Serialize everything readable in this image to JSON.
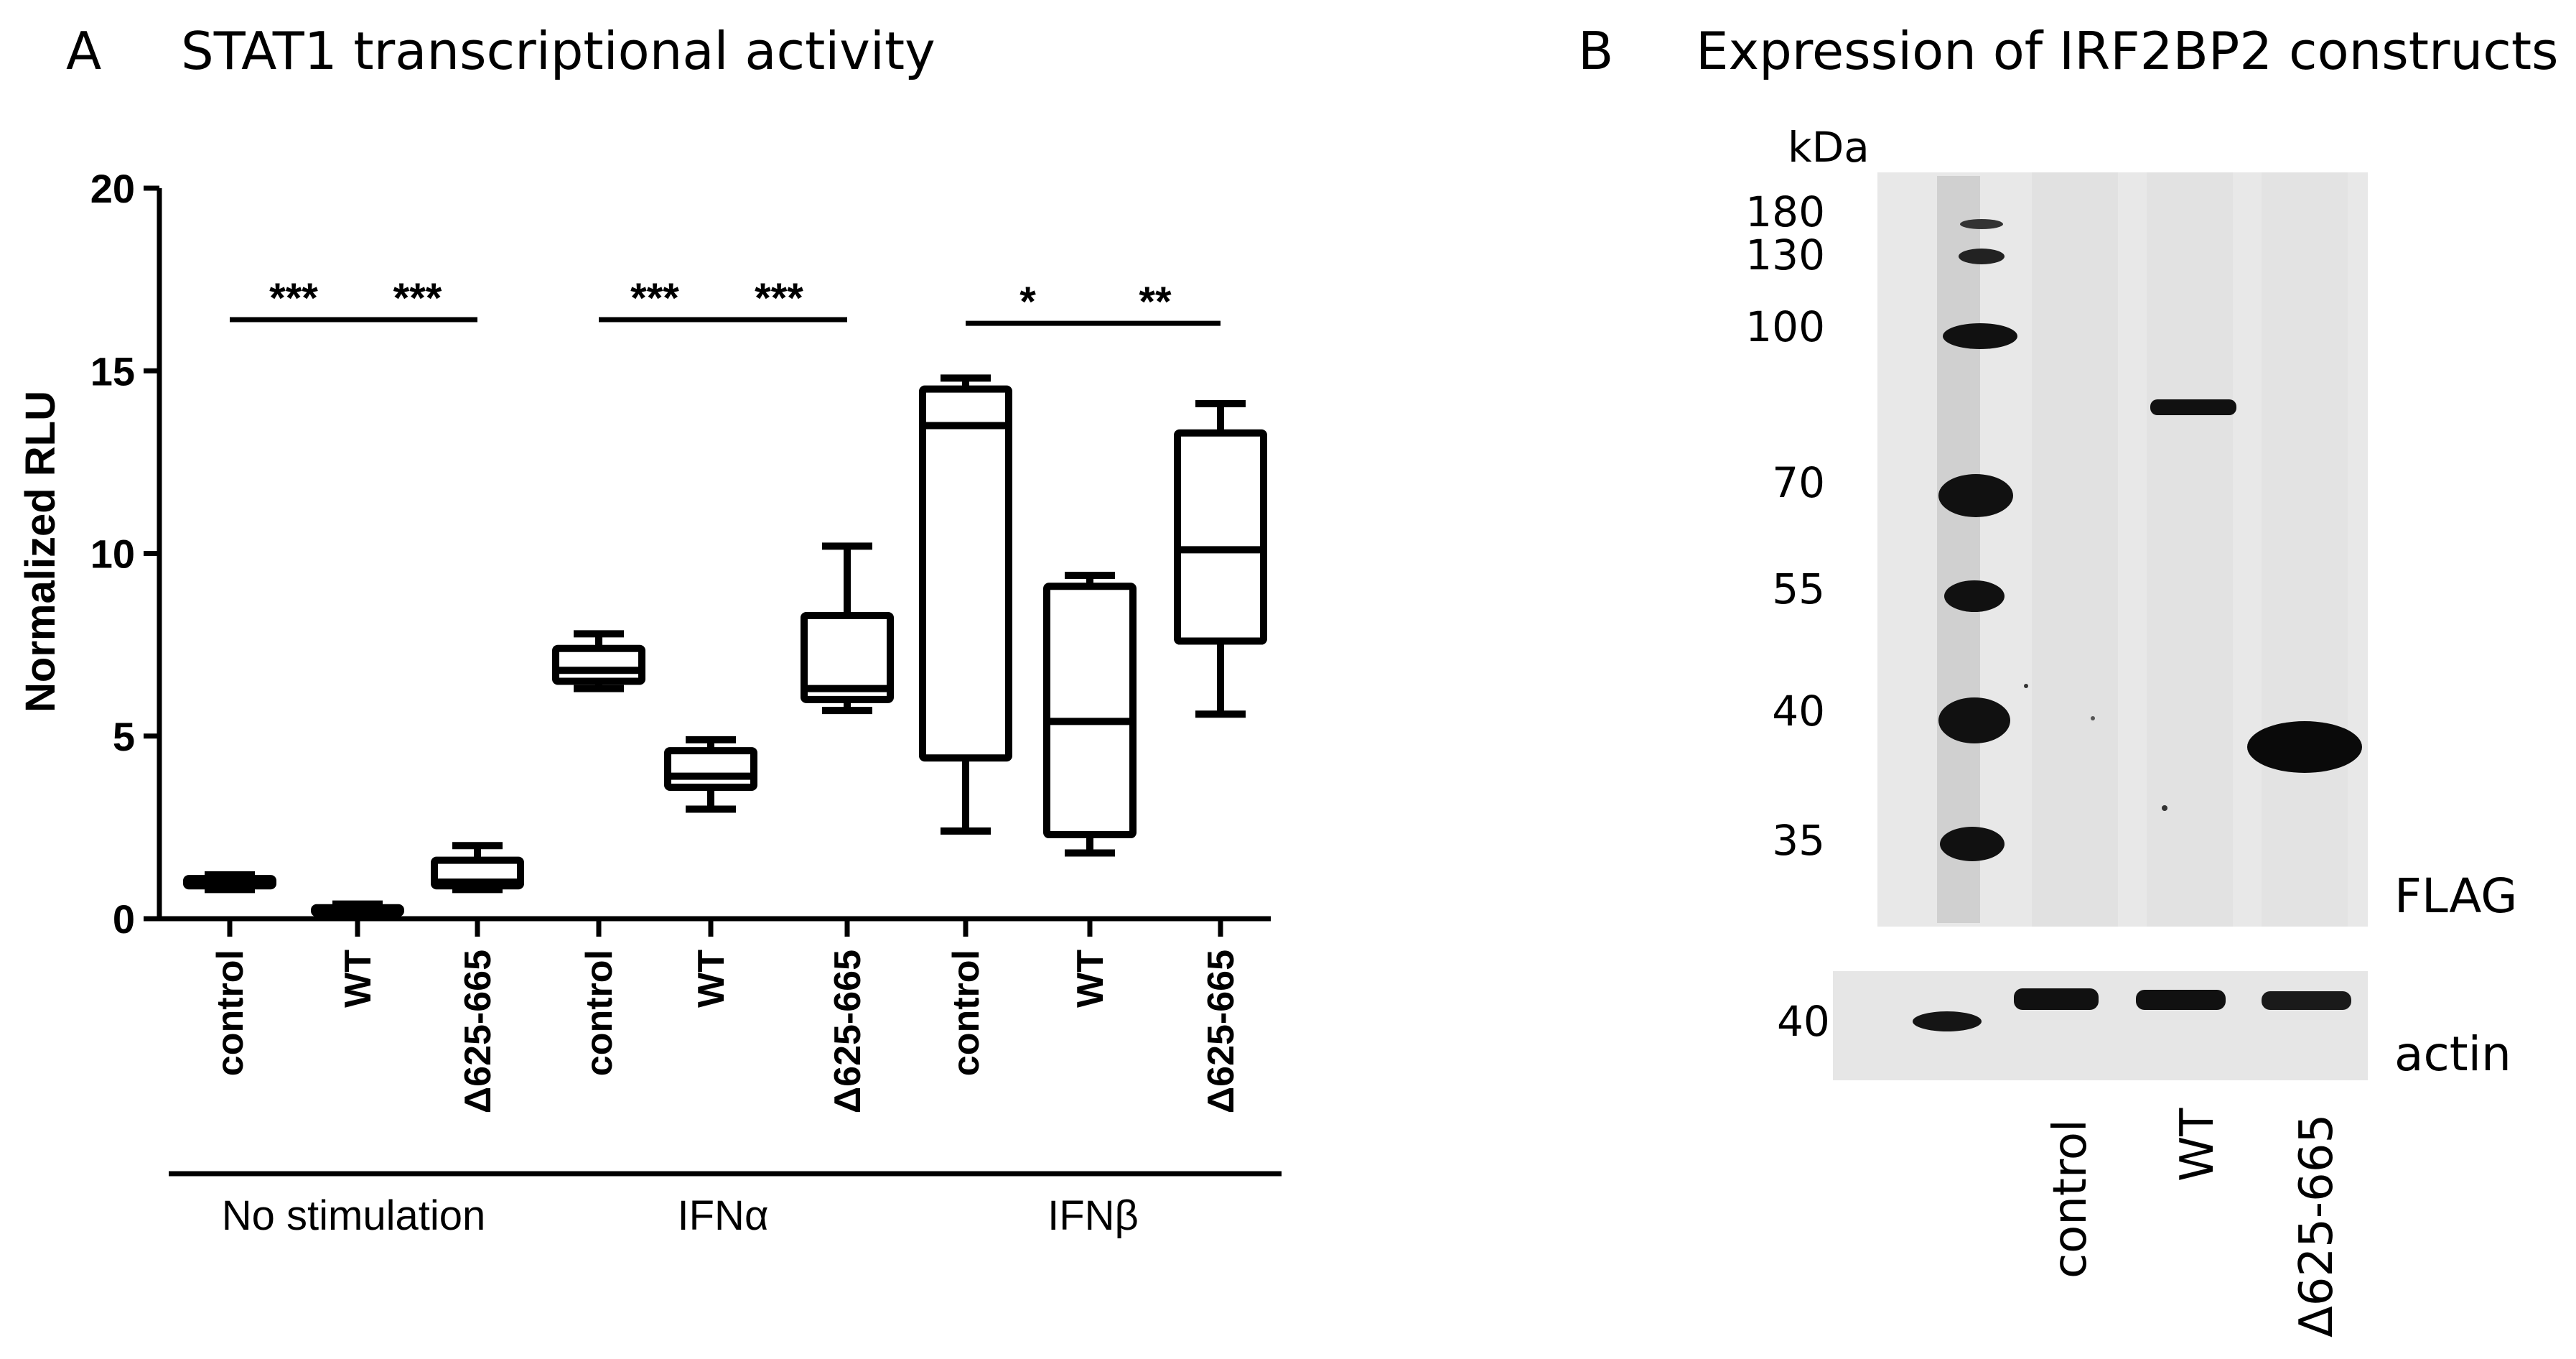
{
  "panel_a": {
    "letter": "A",
    "title": "STAT1 transcriptional activity"
  },
  "panel_b": {
    "letter": "B",
    "title": "Expression of IRF2BP2 constructs",
    "kda_label": "kDa",
    "markers": [
      "180",
      "130",
      "100",
      "70",
      "55",
      "40",
      "35"
    ],
    "actin_marker": "40",
    "flag_label": "FLAG",
    "actin_label": "actin",
    "lanes": [
      "control",
      "WT",
      "Δ625-665"
    ]
  },
  "colors": {
    "ink": "#000000",
    "blot_bg": "#e7e7e7",
    "band": "#111111"
  },
  "chart_data": {
    "type": "box",
    "title": "STAT1 transcriptional activity",
    "ylabel": "Normalized RLU",
    "xlabel": "",
    "ylim": [
      0,
      20
    ],
    "yticks": [
      "0",
      "5",
      "10",
      "15",
      "20"
    ],
    "categories": [
      "control",
      "WT",
      "Δ625-665",
      "control",
      "WT",
      "Δ625-665",
      "control",
      "WT",
      "Δ625-665"
    ],
    "groups": [
      {
        "label": "No stimulation",
        "members": [
          0,
          1,
          2
        ]
      },
      {
        "label": "IFNα",
        "members": [
          3,
          4,
          5
        ]
      },
      {
        "label": "IFNβ",
        "members": [
          6,
          7,
          8
        ]
      }
    ],
    "boxes": [
      {
        "min": 0.8,
        "q1": 0.9,
        "median": 1.0,
        "q3": 1.1,
        "max": 1.2
      },
      {
        "min": 0.1,
        "q1": 0.15,
        "median": 0.2,
        "q3": 0.3,
        "max": 0.4
      },
      {
        "min": 0.8,
        "q1": 0.9,
        "median": 1.0,
        "q3": 1.6,
        "max": 2.0
      },
      {
        "min": 6.3,
        "q1": 6.5,
        "median": 6.8,
        "q3": 7.4,
        "max": 7.8
      },
      {
        "min": 3.0,
        "q1": 3.6,
        "median": 3.9,
        "q3": 4.6,
        "max": 4.9
      },
      {
        "min": 5.7,
        "q1": 6.0,
        "median": 6.3,
        "q3": 8.3,
        "max": 10.2
      },
      {
        "min": 2.4,
        "q1": 4.4,
        "median": 13.5,
        "q3": 14.5,
        "max": 14.8
      },
      {
        "min": 1.8,
        "q1": 2.3,
        "median": 5.4,
        "q3": 9.1,
        "max": 9.4
      },
      {
        "min": 5.6,
        "q1": 7.6,
        "median": 10.1,
        "q3": 13.3,
        "max": 14.1
      }
    ],
    "significance": [
      {
        "pair": [
          0,
          1
        ],
        "label": "***",
        "y": 16.4
      },
      {
        "pair": [
          1,
          2
        ],
        "label": "***",
        "y": 16.4
      },
      {
        "pair": [
          3,
          4
        ],
        "label": "***",
        "y": 16.4
      },
      {
        "pair": [
          4,
          5
        ],
        "label": "***",
        "y": 16.4
      },
      {
        "pair": [
          6,
          7
        ],
        "label": "*",
        "y": 16.3
      },
      {
        "pair": [
          7,
          8
        ],
        "label": "**",
        "y": 16.3
      }
    ]
  }
}
